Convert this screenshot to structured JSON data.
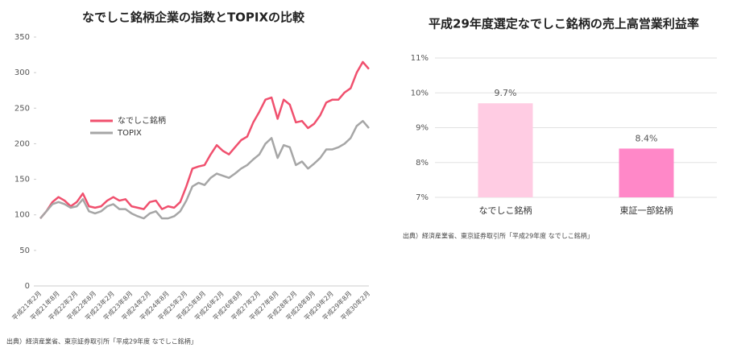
{
  "chart_data": [
    {
      "type": "line",
      "title": "なでしこ銘柄企業の指数とTOPIXの比較",
      "categories": [
        "平成21年2月",
        null,
        null,
        "平成21年8月",
        null,
        null,
        "平成22年2月",
        null,
        null,
        "平成22年8月",
        null,
        null,
        "平成23年2月",
        null,
        null,
        "平成23年8月",
        null,
        null,
        "平成24年2月",
        null,
        null,
        "平成24年8月",
        null,
        null,
        "平成25年2月",
        null,
        null,
        "平成25年8月",
        null,
        null,
        "平成26年2月",
        null,
        null,
        "平成26年8月",
        null,
        null,
        "平成27年2月",
        null,
        null,
        "平成27年8月",
        null,
        null,
        "平成28年2月",
        null,
        null,
        "平成28年8月",
        null,
        null,
        "平成29年2月",
        null,
        null,
        "平成29年8月",
        null,
        null,
        "平成30年2月"
      ],
      "series": [
        {
          "name": "なでしこ銘柄",
          "color": "#f0506e",
          "values": [
            95,
            105,
            118,
            125,
            120,
            112,
            118,
            130,
            112,
            110,
            112,
            120,
            125,
            120,
            122,
            112,
            110,
            108,
            118,
            120,
            108,
            112,
            110,
            118,
            140,
            165,
            168,
            170,
            185,
            198,
            190,
            185,
            195,
            205,
            210,
            230,
            245,
            262,
            265,
            235,
            262,
            255,
            230,
            232,
            222,
            228,
            240,
            258,
            262,
            262,
            272,
            278,
            300,
            315,
            305
          ]
        },
        {
          "name": "TOPIX",
          "color": "#a6a6a6",
          "values": [
            95,
            105,
            115,
            118,
            115,
            110,
            112,
            122,
            105,
            102,
            105,
            112,
            115,
            108,
            108,
            102,
            98,
            95,
            102,
            105,
            95,
            95,
            98,
            105,
            120,
            140,
            145,
            142,
            152,
            158,
            155,
            152,
            158,
            165,
            170,
            178,
            185,
            200,
            208,
            180,
            198,
            195,
            170,
            175,
            165,
            172,
            180,
            192,
            192,
            195,
            200,
            208,
            225,
            232,
            222
          ]
        }
      ],
      "ylim": [
        0,
        350
      ],
      "yticks": [
        0,
        50,
        100,
        150,
        200,
        250,
        300,
        350
      ],
      "note": "出典）経済産業省、東京証券取引所「平成29年度 なでしこ銘柄」"
    },
    {
      "type": "bar",
      "title": "平成29年度選定なでしこ銘柄の売上高営業利益率",
      "categories": [
        "なでしこ銘柄",
        "東証一部銘柄"
      ],
      "values": [
        9.7,
        8.4
      ],
      "value_labels": [
        "9.7%",
        "8.4%"
      ],
      "colors": [
        "#ffcce3",
        "#ff88c8"
      ],
      "ylim": [
        7,
        11
      ],
      "yticks": [
        {
          "value": 7,
          "label": "7%"
        },
        {
          "value": 8,
          "label": "8%"
        },
        {
          "value": 9,
          "label": "9%"
        },
        {
          "value": 10,
          "label": "10%"
        },
        {
          "value": 11,
          "label": "11%"
        }
      ],
      "grid": true,
      "note": "出典）経済産業省、東京証券取引所「平成29年度 なでしこ銘柄」"
    }
  ]
}
